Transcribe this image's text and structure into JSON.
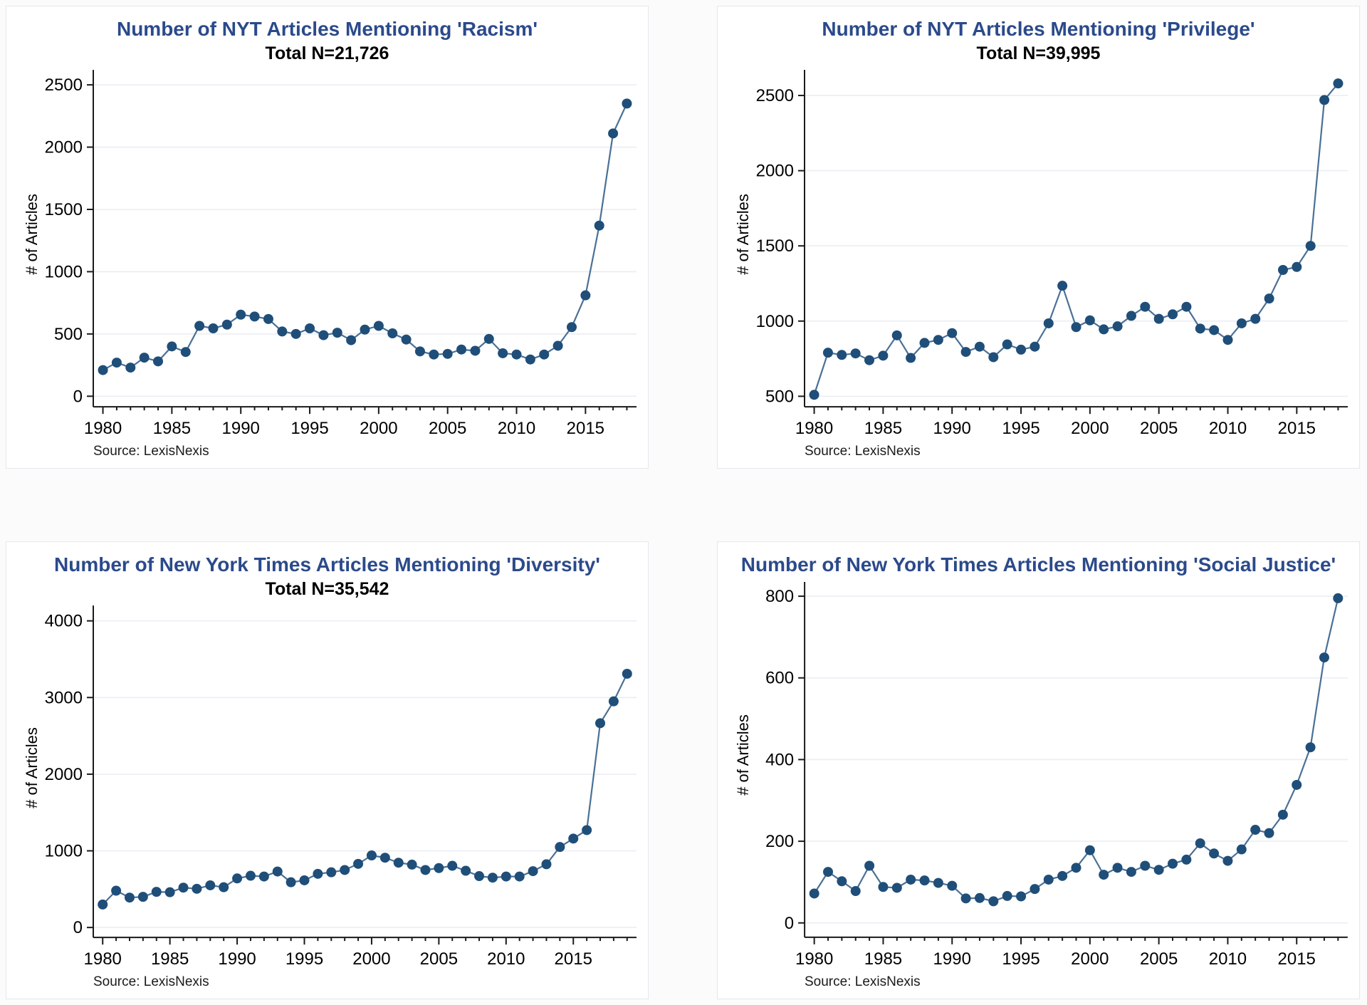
{
  "style": {
    "page_background": "#fbfbfb",
    "panel_background": "#ffffff",
    "panel_border": "#e4e8ec",
    "title_color": "#2b4a8b",
    "marker_color": "#1f4e79",
    "line_color": "#4a7096",
    "grid_color": "#e9eef3",
    "axis_color": "#1a1a1a",
    "text_color": "#000000"
  },
  "chart_data": [
    {
      "id": "racism",
      "type": "line",
      "title": "Number of NYT Articles Mentioning 'Racism'",
      "subtitle": "Total N=21,726",
      "ylabel": "# of Articles",
      "source": "Source: LexisNexis",
      "x": [
        1980,
        1981,
        1982,
        1983,
        1984,
        1985,
        1986,
        1987,
        1988,
        1989,
        1990,
        1991,
        1992,
        1993,
        1994,
        1995,
        1996,
        1997,
        1998,
        1999,
        2000,
        2001,
        2002,
        2003,
        2004,
        2005,
        2006,
        2007,
        2008,
        2009,
        2010,
        2011,
        2012,
        2013,
        2014,
        2015,
        2016,
        2017,
        2018
      ],
      "values": [
        210,
        270,
        230,
        310,
        280,
        400,
        355,
        565,
        545,
        575,
        655,
        640,
        620,
        520,
        500,
        545,
        490,
        510,
        450,
        535,
        565,
        505,
        455,
        360,
        335,
        340,
        375,
        365,
        460,
        345,
        335,
        295,
        335,
        405,
        555,
        810,
        1370,
        2110,
        2350
      ],
      "xticks": [
        1980,
        1985,
        1990,
        1995,
        2000,
        2005,
        2010,
        2015
      ],
      "yticks": [
        0,
        500,
        1000,
        1500,
        2000,
        2500
      ],
      "xlim": [
        1979.3,
        2018.7
      ],
      "ylim": [
        -85,
        2620
      ],
      "grid": true,
      "legend": "none"
    },
    {
      "id": "privilege",
      "type": "line",
      "title": "Number of NYT Articles Mentioning 'Privilege'",
      "subtitle": "Total N=39,995",
      "ylabel": "# of Articles",
      "source": "Source: LexisNexis",
      "x": [
        1980,
        1981,
        1982,
        1983,
        1984,
        1985,
        1986,
        1987,
        1988,
        1989,
        1990,
        1991,
        1992,
        1993,
        1994,
        1995,
        1996,
        1997,
        1998,
        1999,
        2000,
        2001,
        2002,
        2003,
        2004,
        2005,
        2006,
        2007,
        2008,
        2009,
        2010,
        2011,
        2012,
        2013,
        2014,
        2015,
        2016,
        2017,
        2018
      ],
      "values": [
        510,
        790,
        775,
        785,
        740,
        770,
        905,
        755,
        855,
        875,
        920,
        795,
        830,
        760,
        845,
        810,
        830,
        985,
        1235,
        960,
        1005,
        945,
        965,
        1035,
        1095,
        1015,
        1045,
        1095,
        950,
        940,
        875,
        985,
        1015,
        1150,
        1340,
        1360,
        1500,
        2470,
        2580
      ],
      "xticks": [
        1980,
        1985,
        1990,
        1995,
        2000,
        2005,
        2010,
        2015
      ],
      "yticks": [
        500,
        1000,
        1500,
        2000,
        2500
      ],
      "xlim": [
        1979.3,
        2018.7
      ],
      "ylim": [
        430,
        2670
      ],
      "grid": true,
      "legend": "none"
    },
    {
      "id": "diversity",
      "type": "line",
      "title": "Number of New York Times Articles Mentioning 'Diversity'",
      "subtitle": "Total N=35,542",
      "ylabel": "# of Articles",
      "source": "Source: LexisNexis",
      "x": [
        1980,
        1981,
        1982,
        1983,
        1984,
        1985,
        1986,
        1987,
        1988,
        1989,
        1990,
        1991,
        1992,
        1993,
        1994,
        1995,
        1996,
        1997,
        1998,
        1999,
        2000,
        2001,
        2002,
        2003,
        2004,
        2005,
        2006,
        2007,
        2008,
        2009,
        2010,
        2011,
        2012,
        2013,
        2014,
        2015,
        2016,
        2017,
        2018,
        2019
      ],
      "values": [
        300,
        480,
        390,
        400,
        465,
        460,
        520,
        505,
        550,
        525,
        640,
        675,
        665,
        730,
        590,
        615,
        700,
        720,
        750,
        830,
        940,
        910,
        845,
        820,
        750,
        775,
        805,
        740,
        670,
        650,
        665,
        665,
        735,
        825,
        1050,
        1160,
        1270,
        2665,
        2950,
        3310
      ],
      "xticks": [
        1980,
        1985,
        1990,
        1995,
        2000,
        2005,
        2010,
        2015
      ],
      "yticks": [
        0,
        1000,
        2000,
        3000,
        4000
      ],
      "xlim": [
        1979.3,
        2019.7
      ],
      "ylim": [
        -130,
        4200
      ],
      "grid": true,
      "legend": "none"
    },
    {
      "id": "social-justice",
      "type": "line",
      "title": "Number of New York Times Articles Mentioning 'Social Justice'",
      "subtitle": "",
      "ylabel": "# of Articles",
      "source": "Source: LexisNexis",
      "x": [
        1980,
        1981,
        1982,
        1983,
        1984,
        1985,
        1986,
        1987,
        1988,
        1989,
        1990,
        1991,
        1992,
        1993,
        1994,
        1995,
        1996,
        1997,
        1998,
        1999,
        2000,
        2001,
        2002,
        2003,
        2004,
        2005,
        2006,
        2007,
        2008,
        2009,
        2010,
        2011,
        2012,
        2013,
        2014,
        2015,
        2016,
        2017,
        2018
      ],
      "values": [
        72,
        125,
        102,
        78,
        140,
        88,
        86,
        106,
        104,
        98,
        91,
        60,
        61,
        53,
        66,
        65,
        83,
        106,
        115,
        135,
        178,
        118,
        135,
        125,
        140,
        130,
        145,
        155,
        195,
        170,
        152,
        180,
        228,
        220,
        265,
        338,
        430,
        650,
        795
      ],
      "xticks": [
        1980,
        1985,
        1990,
        1995,
        2000,
        2005,
        2010,
        2015
      ],
      "yticks": [
        0,
        200,
        400,
        600,
        800
      ],
      "xlim": [
        1979.3,
        2018.7
      ],
      "ylim": [
        -35,
        835
      ],
      "grid": true,
      "legend": "none"
    }
  ]
}
